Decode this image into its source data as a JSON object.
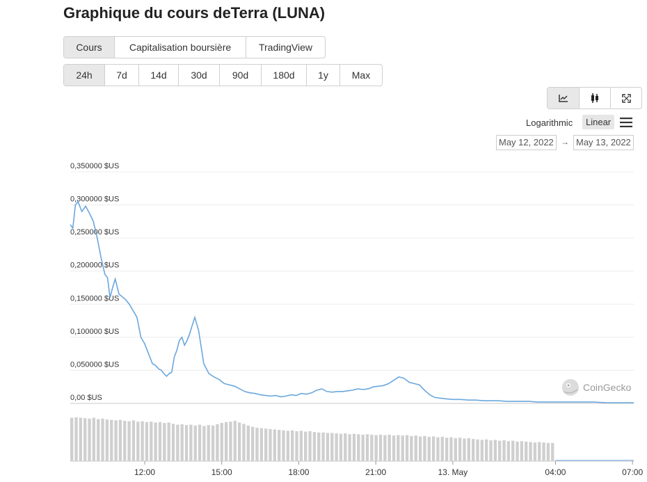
{
  "page": {
    "title": "Graphique du cours deTerra (LUNA)"
  },
  "tabs": [
    {
      "label": "Cours",
      "active": true
    },
    {
      "label": "Capitalisation boursière",
      "active": false
    },
    {
      "label": "TradingView",
      "active": false
    }
  ],
  "ranges": [
    {
      "label": "24h",
      "active": true
    },
    {
      "label": "7d",
      "active": false
    },
    {
      "label": "14d",
      "active": false
    },
    {
      "label": "30d",
      "active": false
    },
    {
      "label": "90d",
      "active": false
    },
    {
      "label": "180d",
      "active": false
    },
    {
      "label": "1y",
      "active": false
    },
    {
      "label": "Max",
      "active": false
    }
  ],
  "tools": [
    {
      "icon": "line-chart-icon",
      "active": true
    },
    {
      "icon": "candlestick-icon",
      "active": false
    },
    {
      "icon": "fullscreen-icon",
      "active": false
    }
  ],
  "scale": {
    "log_label": "Logarithmic",
    "linear_label": "Linear",
    "selected": "Linear",
    "menu_icon": "hamburger-menu-icon"
  },
  "date_range": {
    "from": "May 12, 2022",
    "arrow": "→",
    "to": "May 13, 2022"
  },
  "watermark": {
    "text": "CoinGecko",
    "icon": "coingecko-logo-icon"
  },
  "chart_data": {
    "type": "line",
    "title": "",
    "xlabel": "",
    "ylabel": "",
    "ylim": [
      0,
      0.35
    ],
    "y_ticks": [
      {
        "value": 0,
        "label": "0,00 $US"
      },
      {
        "value": 0.05,
        "label": "0,050000 $US"
      },
      {
        "value": 0.1,
        "label": "0,100000 $US"
      },
      {
        "value": 0.15,
        "label": "0,150000 $US"
      },
      {
        "value": 0.2,
        "label": "0,200000 $US"
      },
      {
        "value": 0.25,
        "label": "0,250000 $US"
      },
      {
        "value": 0.3,
        "label": "0,300000 $US"
      },
      {
        "value": 0.35,
        "label": "0,350000 $US"
      }
    ],
    "x_ticks": [
      {
        "hour": 12,
        "label": "12:00"
      },
      {
        "hour": 15,
        "label": "15:00"
      },
      {
        "hour": 18,
        "label": "18:00"
      },
      {
        "hour": 21,
        "label": "21:00"
      },
      {
        "hour": 24,
        "label": "13. May"
      },
      {
        "hour": 28,
        "label": "04:00"
      },
      {
        "hour": 31,
        "label": "07:00"
      }
    ],
    "xlim": [
      9.1,
      31.05
    ],
    "grid": true,
    "legend": "none",
    "line_color": "#6aa7dc",
    "volume_color": "#cfcfcf",
    "series": [
      {
        "x": [
          9.1,
          9.2,
          9.3,
          9.4,
          9.55,
          9.7,
          9.85,
          10.0,
          10.15,
          10.3,
          10.45,
          10.55,
          10.65,
          10.75,
          10.85,
          11.0,
          11.1,
          11.25,
          11.4,
          11.55,
          11.7,
          11.85,
          12.0,
          12.1,
          12.2,
          12.3,
          12.4,
          12.55,
          12.65,
          12.75,
          12.85,
          12.95,
          13.05,
          13.15,
          13.25,
          13.35,
          13.45,
          13.55,
          13.65,
          13.75,
          13.85,
          13.95,
          14.1,
          14.3,
          14.5,
          14.7,
          14.9,
          15.1,
          15.3,
          15.5,
          15.7,
          15.9,
          16.1,
          16.3,
          16.5,
          16.7,
          16.9,
          17.1,
          17.3,
          17.5,
          17.7,
          17.9,
          18.1,
          18.3,
          18.5,
          18.7,
          18.9,
          19.1,
          19.3,
          19.5,
          19.7,
          19.9,
          20.1,
          20.3,
          20.5,
          20.7,
          20.9,
          21.1,
          21.3,
          21.5,
          21.7,
          21.9,
          22.1,
          22.3,
          22.5,
          22.7,
          22.9,
          23.1,
          23.3,
          23.5,
          23.7,
          24.0,
          24.3,
          24.6,
          24.9,
          25.2,
          25.5,
          25.8,
          26.1,
          26.4,
          26.7,
          27.0,
          27.3,
          27.6,
          28.0,
          28.5,
          29.0,
          29.5,
          30.0,
          30.5,
          31.05
        ],
        "y": [
          0.27,
          0.265,
          0.3,
          0.305,
          0.29,
          0.298,
          0.287,
          0.275,
          0.25,
          0.22,
          0.195,
          0.19,
          0.16,
          0.175,
          0.188,
          0.165,
          0.162,
          0.157,
          0.15,
          0.14,
          0.13,
          0.1,
          0.09,
          0.08,
          0.07,
          0.06,
          0.058,
          0.052,
          0.05,
          0.045,
          0.041,
          0.045,
          0.047,
          0.07,
          0.08,
          0.095,
          0.1,
          0.088,
          0.095,
          0.105,
          0.118,
          0.13,
          0.11,
          0.06,
          0.045,
          0.04,
          0.036,
          0.03,
          0.028,
          0.026,
          0.022,
          0.018,
          0.016,
          0.015,
          0.013,
          0.012,
          0.011,
          0.012,
          0.01,
          0.011,
          0.013,
          0.012,
          0.015,
          0.014,
          0.016,
          0.02,
          0.022,
          0.018,
          0.017,
          0.018,
          0.018,
          0.019,
          0.02,
          0.022,
          0.021,
          0.022,
          0.025,
          0.026,
          0.027,
          0.03,
          0.035,
          0.04,
          0.038,
          0.032,
          0.03,
          0.028,
          0.02,
          0.013,
          0.009,
          0.008,
          0.007,
          0.006,
          0.006,
          0.005,
          0.005,
          0.004,
          0.004,
          0.004,
          0.003,
          0.003,
          0.003,
          0.003,
          0.002,
          0.002,
          0.002,
          0.002,
          0.002,
          0.002,
          0.001,
          0.001,
          0.001
        ]
      }
    ],
    "volume_x_range": [
      9.1,
      28.0
    ],
    "volume": [
      100,
      101,
      100,
      99,
      98,
      100,
      97,
      98,
      96,
      95,
      94,
      95,
      93,
      92,
      94,
      91,
      92,
      90,
      91,
      89,
      90,
      88,
      89,
      86,
      84,
      85,
      83,
      84,
      82,
      84,
      81,
      83,
      82,
      85,
      88,
      90,
      91,
      93,
      89,
      86,
      82,
      79,
      77,
      76,
      75,
      74,
      73,
      72,
      71,
      70,
      71,
      69,
      70,
      68,
      69,
      67,
      66,
      66,
      65,
      65,
      64,
      63,
      64,
      62,
      63,
      62,
      61,
      62,
      61,
      60,
      61,
      60,
      61,
      59,
      60,
      59,
      60,
      58,
      59,
      57,
      58,
      56,
      57,
      55,
      56,
      54,
      55,
      53,
      54,
      52,
      53,
      51,
      50,
      49,
      50,
      48,
      49,
      47,
      48,
      46,
      47,
      45,
      46,
      45,
      44,
      43,
      44,
      43,
      42,
      42
    ]
  }
}
